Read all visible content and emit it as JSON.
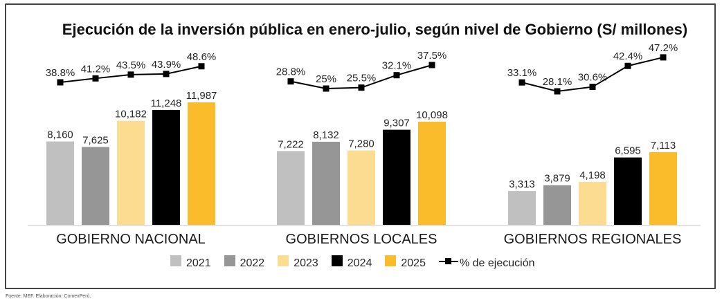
{
  "chart_data": {
    "type": "bar",
    "title": "Ejecución de la inversión pública en enero-julio, según nivel de Gobierno (S/ millones)",
    "xlabel": "",
    "ylabel": "",
    "grid": false,
    "legend_position": "bottom",
    "categories": [
      "GOBIERNO NACIONAL",
      "GOBIERNOS LOCALES",
      "GOBIERNOS REGIONALES"
    ],
    "series": [
      {
        "name": "2021",
        "color": "#C0C0C0",
        "values": [
          8160,
          7222,
          3313
        ],
        "labels": [
          "8,160",
          "7,222",
          "3,313"
        ]
      },
      {
        "name": "2022",
        "color": "#969696",
        "values": [
          7625,
          8132,
          3879
        ],
        "labels": [
          "7,625",
          "8,132",
          "3,879"
        ]
      },
      {
        "name": "2023",
        "color": "#FBDC90",
        "values": [
          10182,
          7280,
          4198
        ],
        "labels": [
          "10,182",
          "7,280",
          "4,198"
        ]
      },
      {
        "name": "2024",
        "color": "#000000",
        "values": [
          11248,
          9307,
          6595
        ],
        "labels": [
          "11,248",
          "9,307",
          "6,595"
        ]
      },
      {
        "name": "2025",
        "color": "#FBBC2C",
        "values": [
          11987,
          10098,
          7113
        ],
        "labels": [
          "11,987",
          "10,098",
          "7,113"
        ]
      }
    ],
    "line_series": {
      "name": "% de ejecución",
      "type": "line",
      "color": "#000000",
      "x": [
        "2021",
        "2022",
        "2023",
        "2024",
        "2025"
      ],
      "values": [
        [
          38.8,
          41.2,
          43.5,
          43.9,
          48.6
        ],
        [
          28.8,
          25.0,
          25.5,
          32.1,
          37.5
        ],
        [
          33.1,
          28.1,
          30.6,
          42.4,
          47.2
        ]
      ],
      "labels": [
        [
          "38.8%",
          "41.2%",
          "43.5%",
          "43.9%",
          "48.6%"
        ],
        [
          "28.8%",
          "25%",
          "25.5%",
          "32.1%",
          "37.5%"
        ],
        [
          "33.1%",
          "28.1%",
          "30.6%",
          "42.4%",
          "47.2%"
        ]
      ]
    },
    "ylim": [
      0,
      12000
    ]
  },
  "legend": {
    "items": [
      "2021",
      "2022",
      "2023",
      "2024",
      "2025"
    ],
    "line_label": "% de ejecución"
  },
  "source": "Fuente: MEF. Elaboración: ComexPerú."
}
